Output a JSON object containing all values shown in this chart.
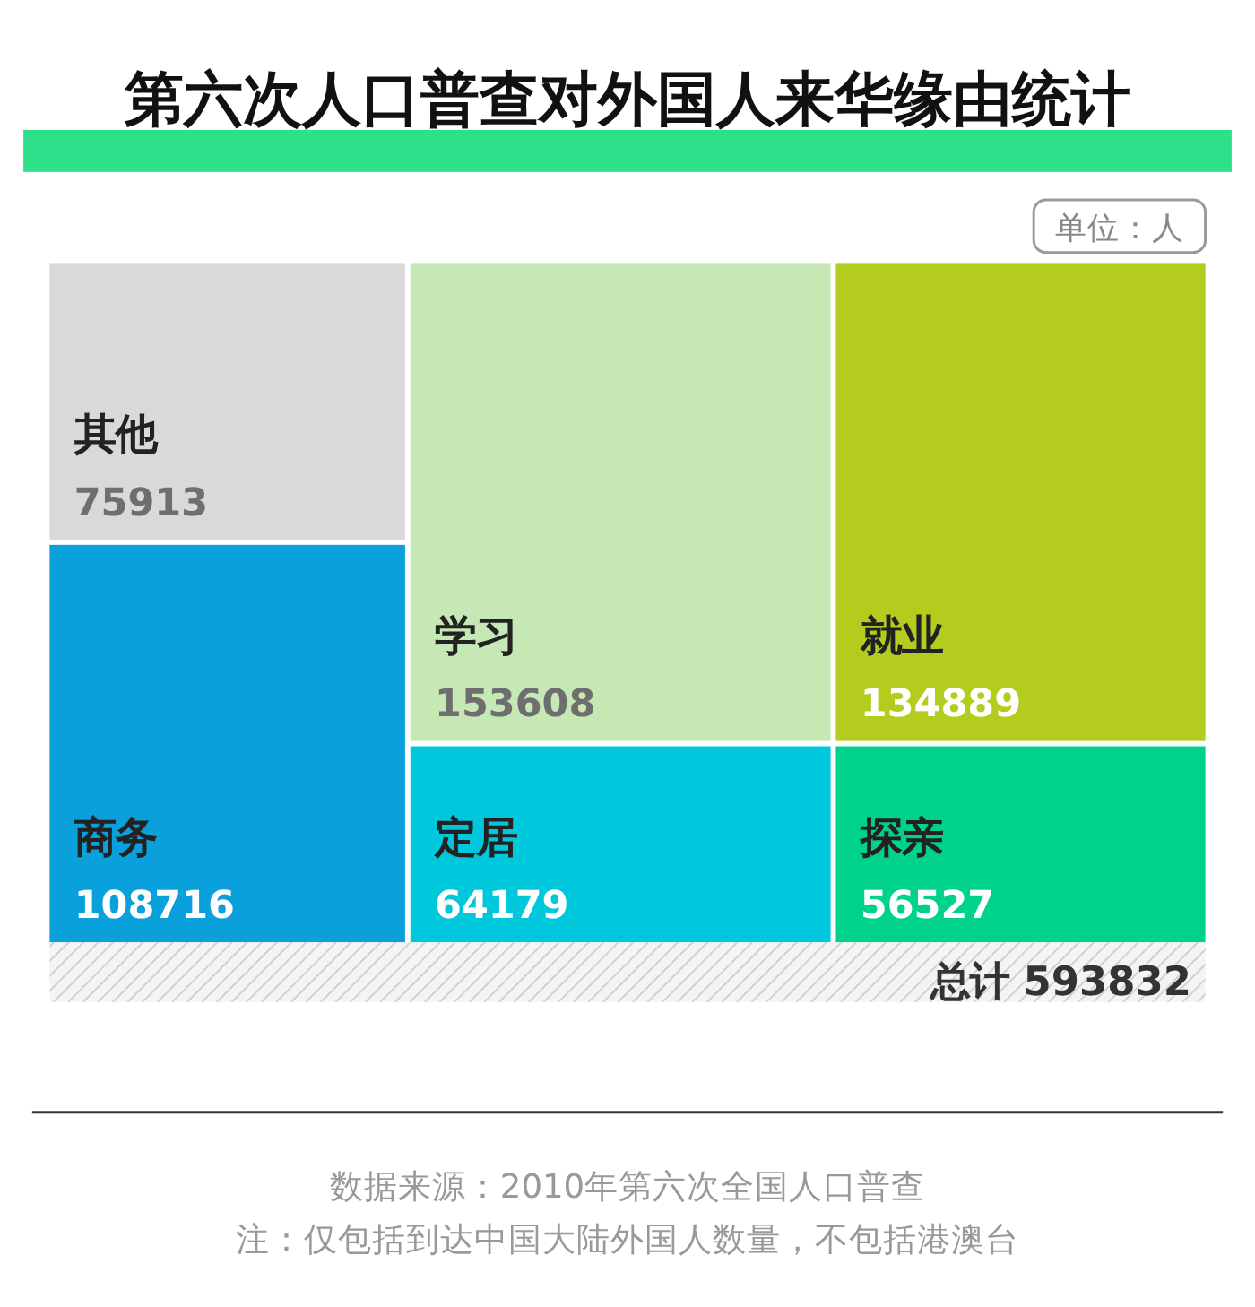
{
  "chart_data": {
    "type": "other",
    "title": "第六次人口普查对外国人来华缘由统计",
    "categories": [
      "其他",
      "商务",
      "学习",
      "定居",
      "就业",
      "探亲"
    ],
    "values": [
      75913,
      108716,
      153608,
      64179,
      134889,
      56527
    ],
    "colors": [
      "#d9d9d9",
      "#0aa0db",
      "#c6e8b4",
      "#00c8dc",
      "#b4cc1e",
      "#00d28c"
    ],
    "data_labels": true,
    "annotations": [
      "单位：人",
      "总计 593832",
      "数据来源：2010年第六次全国人口普查",
      "注：仅包括到达中国大陆外国人数量，不包括港澳台"
    ]
  }
}
